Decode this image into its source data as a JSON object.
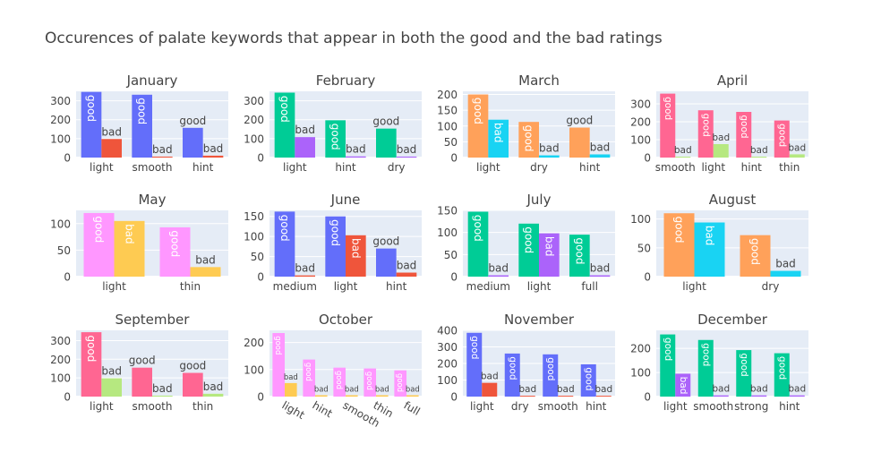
{
  "title": "Occurences of palate keywords that appear in both the good and the bad ratings",
  "chart_data": [
    {
      "type": "bar",
      "title": "January",
      "categories": [
        "light",
        "smooth",
        "hint"
      ],
      "series": [
        {
          "name": "good",
          "values": [
            347,
            332,
            157
          ]
        },
        {
          "name": "bad",
          "values": [
            98,
            5,
            10
          ]
        }
      ],
      "ylim": [
        0,
        350
      ],
      "yticks": [
        0,
        100,
        200,
        300
      ],
      "colors": [
        "#636efa",
        "#ef553b"
      ]
    },
    {
      "type": "bar",
      "title": "February",
      "categories": [
        "light",
        "hint",
        "dry"
      ],
      "series": [
        {
          "name": "good",
          "values": [
            343,
            197,
            153
          ]
        },
        {
          "name": "bad",
          "values": [
            108,
            6,
            5
          ]
        }
      ],
      "ylim": [
        0,
        350
      ],
      "yticks": [
        0,
        100,
        200,
        300
      ],
      "colors": [
        "#00cc96",
        "#ab63fa"
      ]
    },
    {
      "type": "bar",
      "title": "March",
      "categories": [
        "light",
        "dry",
        "hint"
      ],
      "series": [
        {
          "name": "good",
          "values": [
            200,
            113,
            95
          ]
        },
        {
          "name": "bad",
          "values": [
            120,
            7,
            10
          ]
        }
      ],
      "ylim": [
        0,
        210
      ],
      "yticks": [
        0,
        50,
        100,
        150,
        200
      ],
      "colors": [
        "#ffa15a",
        "#19d3f3"
      ]
    },
    {
      "type": "bar",
      "title": "April",
      "categories": [
        "smooth",
        "light",
        "hint",
        "thin"
      ],
      "series": [
        {
          "name": "good",
          "values": [
            357,
            264,
            255,
            207
          ]
        },
        {
          "name": "bad",
          "values": [
            5,
            75,
            5,
            18
          ]
        }
      ],
      "ylim": [
        0,
        370
      ],
      "yticks": [
        0,
        100,
        200,
        300
      ],
      "colors": [
        "#ff6692",
        "#b6e880"
      ]
    },
    {
      "type": "bar",
      "title": "May",
      "categories": [
        "light",
        "thin"
      ],
      "series": [
        {
          "name": "good",
          "values": [
            120,
            93
          ]
        },
        {
          "name": "bad",
          "values": [
            105,
            18
          ]
        }
      ],
      "ylim": [
        0,
        125
      ],
      "yticks": [
        0,
        50,
        100
      ],
      "colors": [
        "#ff97ff",
        "#fecb52"
      ]
    },
    {
      "type": "bar",
      "title": "June",
      "categories": [
        "medium",
        "light",
        "hint"
      ],
      "series": [
        {
          "name": "good",
          "values": [
            162,
            150,
            70
          ]
        },
        {
          "name": "bad",
          "values": [
            3,
            103,
            10
          ]
        }
      ],
      "ylim": [
        0,
        165
      ],
      "yticks": [
        0,
        50,
        100,
        150
      ],
      "colors": [
        "#636efa",
        "#ef553b"
      ]
    },
    {
      "type": "bar",
      "title": "July",
      "categories": [
        "medium",
        "light",
        "full"
      ],
      "series": [
        {
          "name": "good",
          "values": [
            147,
            120,
            95
          ]
        },
        {
          "name": "bad",
          "values": [
            3,
            98,
            3
          ]
        }
      ],
      "ylim": [
        0,
        150
      ],
      "yticks": [
        0,
        50,
        100,
        150
      ],
      "colors": [
        "#00cc96",
        "#ab63fa"
      ]
    },
    {
      "type": "bar",
      "title": "August",
      "categories": [
        "light",
        "dry"
      ],
      "series": [
        {
          "name": "good",
          "values": [
            110,
            72
          ]
        },
        {
          "name": "bad",
          "values": [
            94,
            10
          ]
        }
      ],
      "ylim": [
        0,
        115
      ],
      "yticks": [
        0,
        50,
        100
      ],
      "colors": [
        "#ffa15a",
        "#19d3f3"
      ]
    },
    {
      "type": "bar",
      "title": "September",
      "categories": [
        "light",
        "smooth",
        "thin"
      ],
      "series": [
        {
          "name": "good",
          "values": [
            345,
            155,
            127
          ]
        },
        {
          "name": "bad",
          "values": [
            98,
            5,
            15
          ]
        }
      ],
      "ylim": [
        0,
        355
      ],
      "yticks": [
        0,
        100,
        200,
        300
      ],
      "colors": [
        "#ff6692",
        "#b6e880"
      ]
    },
    {
      "type": "bar",
      "title": "October",
      "categories": [
        "light",
        "hint",
        "smooth",
        "thin",
        "full"
      ],
      "series": [
        {
          "name": "good",
          "values": [
            235,
            137,
            107,
            104,
            97
          ]
        },
        {
          "name": "bad",
          "values": [
            50,
            5,
            5,
            5,
            5
          ]
        }
      ],
      "ylim": [
        0,
        245
      ],
      "yticks": [
        0,
        100,
        200
      ],
      "colors": [
        "#ff97ff",
        "#fecb52"
      ],
      "rotate_ticks": true
    },
    {
      "type": "bar",
      "title": "November",
      "categories": [
        "light",
        "dry",
        "smooth",
        "hint"
      ],
      "series": [
        {
          "name": "good",
          "values": [
            385,
            260,
            255,
            195
          ]
        },
        {
          "name": "bad",
          "values": [
            83,
            5,
            5,
            5
          ]
        }
      ],
      "ylim": [
        0,
        400
      ],
      "yticks": [
        0,
        100,
        200,
        300,
        400
      ],
      "colors": [
        "#636efa",
        "#ef553b"
      ]
    },
    {
      "type": "bar",
      "title": "December",
      "categories": [
        "light",
        "smooth",
        "strong",
        "hint"
      ],
      "series": [
        {
          "name": "good",
          "values": [
            258,
            235,
            193,
            180
          ]
        },
        {
          "name": "bad",
          "values": [
            95,
            5,
            5,
            5
          ]
        }
      ],
      "ylim": [
        0,
        275
      ],
      "yticks": [
        0,
        100,
        200
      ],
      "colors": [
        "#00cc96",
        "#ab63fa"
      ]
    }
  ]
}
